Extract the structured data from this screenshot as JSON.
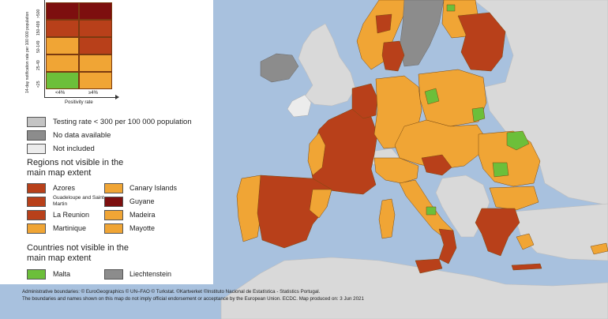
{
  "colors": {
    "sea": "#a8c1de",
    "land_other": "#d9d9d9",
    "dark_red": "#7d0f0f",
    "red": "#b8401a",
    "orange": "#f0a535",
    "green": "#6cbf3a",
    "testing_low": "#c4c4c4",
    "no_data": "#8c8c8c",
    "not_included": "#ececec"
  },
  "matrix": {
    "y_axis_label": "14-day notification rate per 100 000 population",
    "x_axis_label": "Positivity rate",
    "row_labels": [
      ">500",
      "150-499",
      "50-149",
      "25-49",
      "<25"
    ],
    "col_labels": [
      "<4%",
      "≥4%"
    ],
    "cells": [
      [
        "dark_red",
        "dark_red"
      ],
      [
        "red",
        "red"
      ],
      [
        "orange",
        "red"
      ],
      [
        "orange",
        "orange"
      ],
      [
        "green",
        "orange"
      ]
    ]
  },
  "legend": {
    "grey_items": [
      {
        "label": "Testing rate < 300 per 100 000 population",
        "color": "testing_low"
      },
      {
        "label": "No data available",
        "color": "no_data"
      },
      {
        "label": "Not included",
        "color": "not_included"
      }
    ],
    "regions_title": "Regions not visible in the main map extent",
    "regions_left": [
      {
        "label": "Azores",
        "color": "red"
      },
      {
        "label": "Guadeloupe and Saint Martin",
        "color": "red"
      },
      {
        "label": "La Reunion",
        "color": "red"
      },
      {
        "label": "Martinique",
        "color": "orange"
      }
    ],
    "regions_right": [
      {
        "label": "Canary Islands",
        "color": "orange"
      },
      {
        "label": "Guyane",
        "color": "dark_red"
      },
      {
        "label": "Madeira",
        "color": "orange"
      },
      {
        "label": "Mayotte",
        "color": "orange"
      }
    ],
    "countries_title": "Countries not visible in the main map extent",
    "countries": [
      {
        "label": "Malta",
        "color": "green"
      },
      {
        "label": "Liechtenstein",
        "color": "no_data"
      }
    ]
  },
  "footer": {
    "line1": "Administrative boundaries: © EuroGeographics © UN–FAO © Turkstat. ©Kartverket ©Instituto Nacional de Estatística - Statistics Portugal.",
    "line2": "The boundaries and names shown on this map do not imply official endorsement or acceptance by the European Union. ECDC. Map produced on: 3 Jun 2021"
  }
}
